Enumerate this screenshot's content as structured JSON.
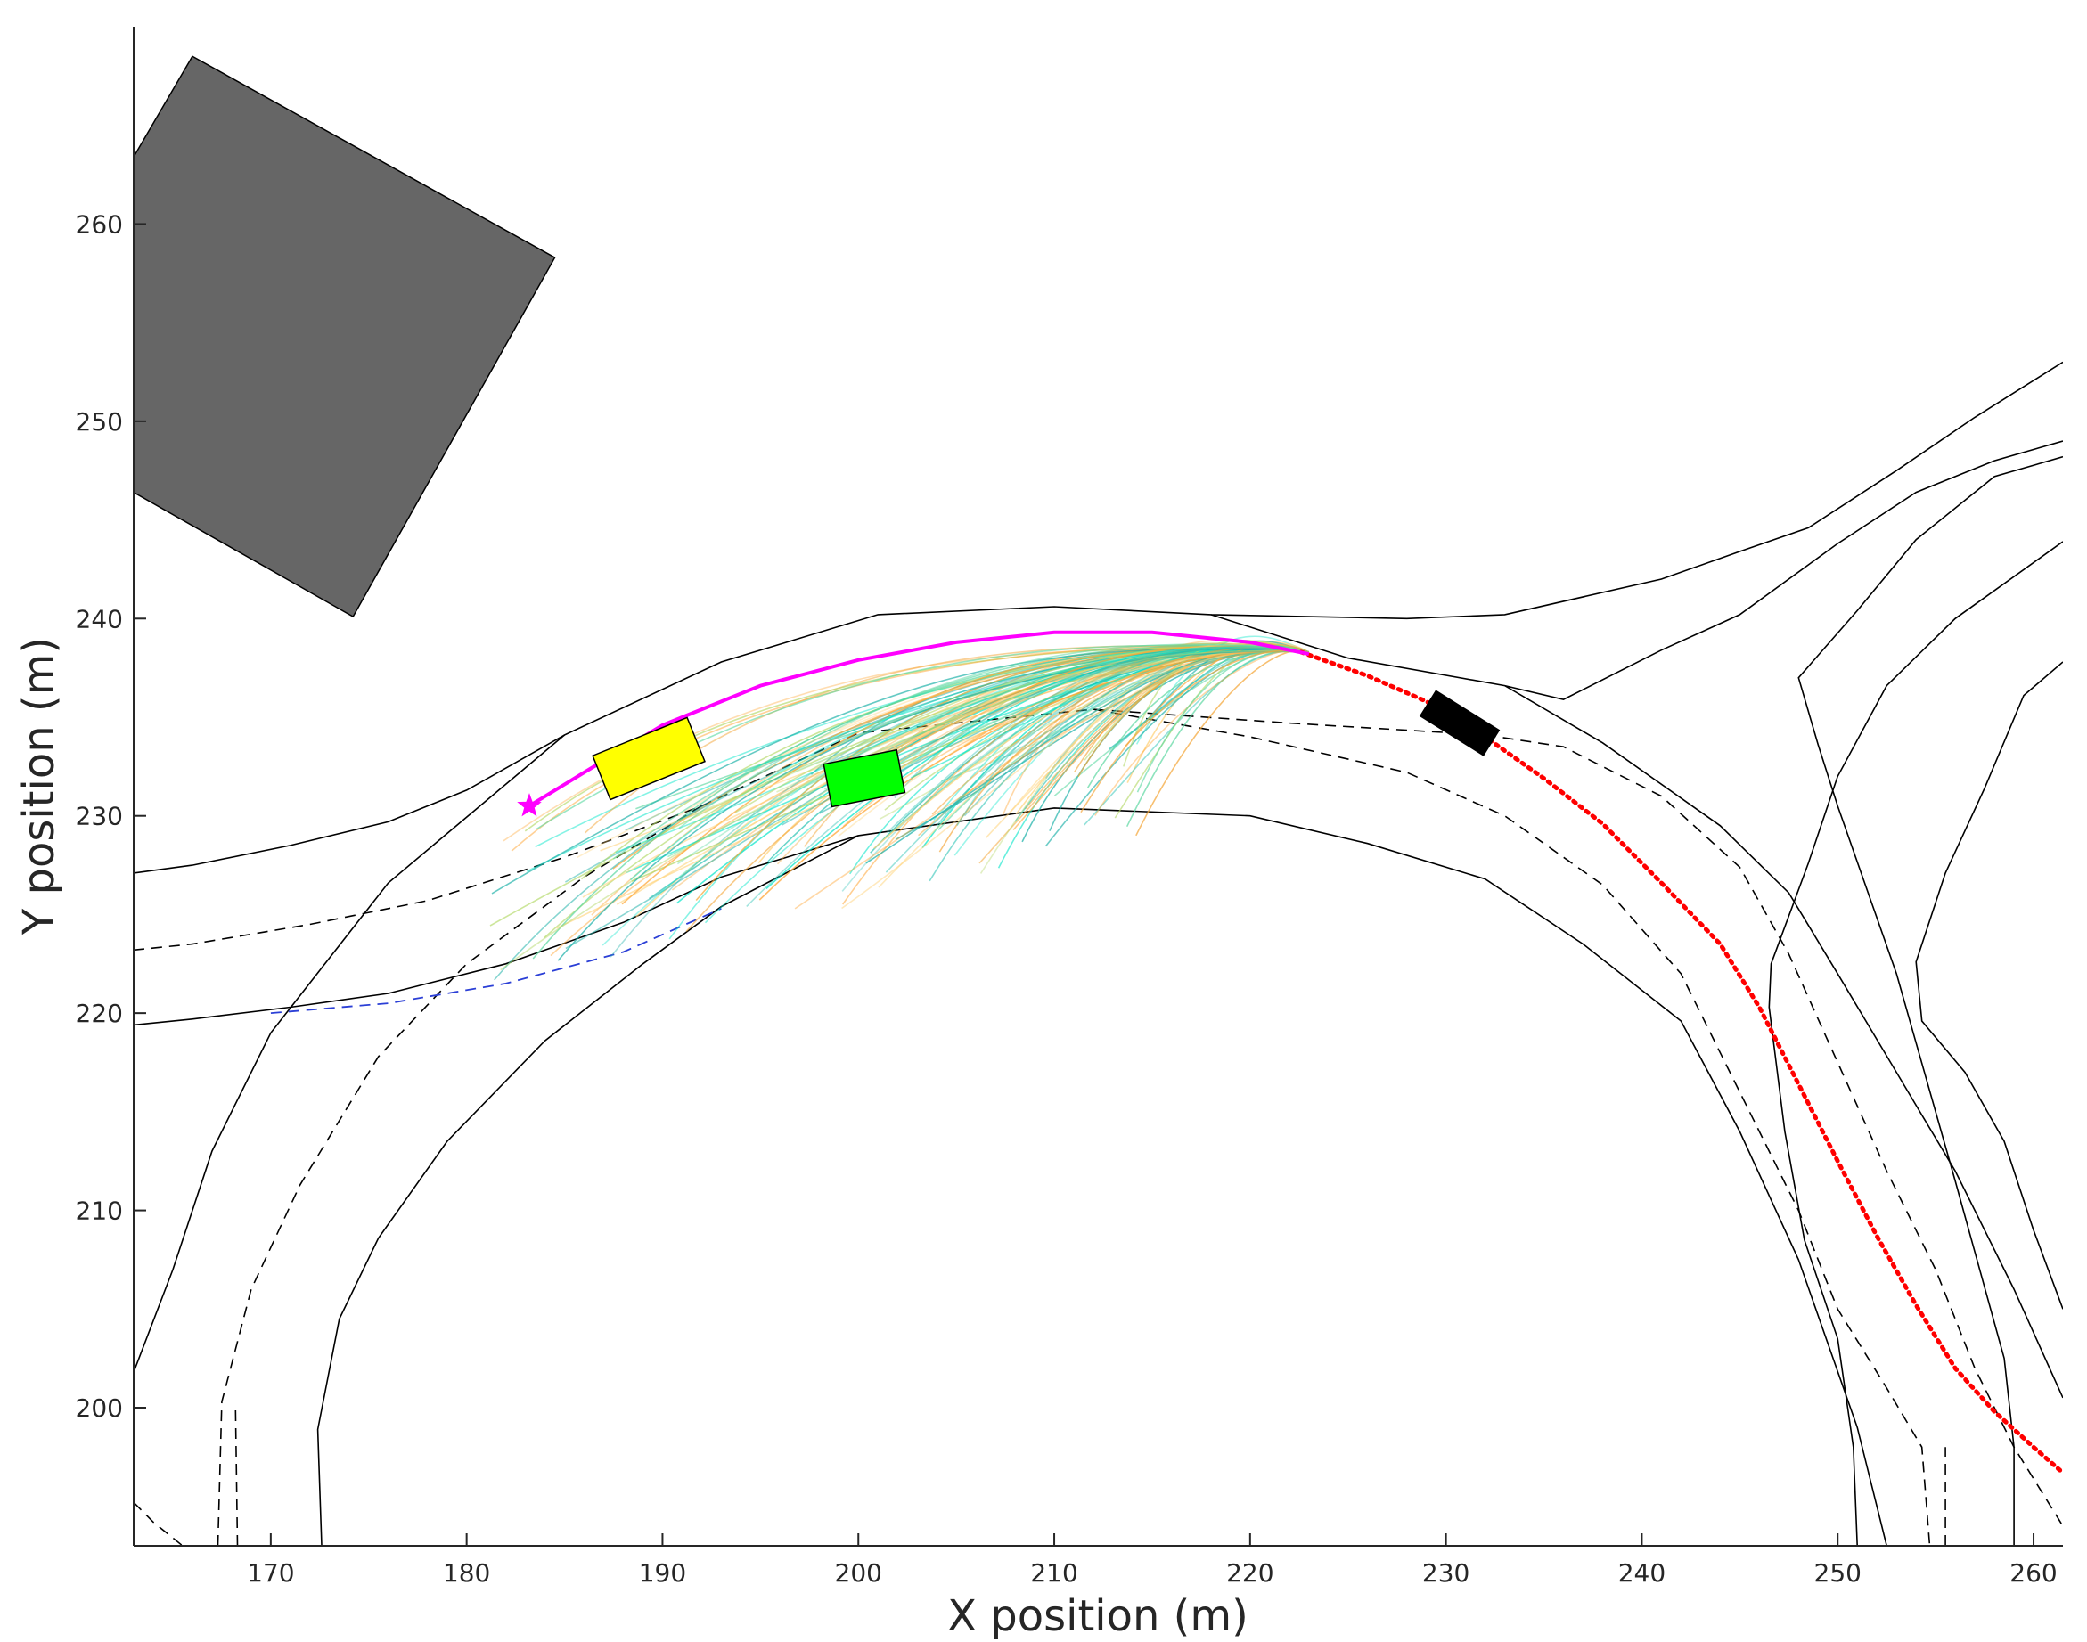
{
  "chart_data": {
    "type": "line",
    "title": "",
    "xlabel": "X position (m)",
    "ylabel": "Y position (m)",
    "xlim": [
      163,
      261.5
    ],
    "ylim": [
      193,
      270
    ],
    "xticks": [
      170,
      180,
      190,
      200,
      210,
      220,
      230,
      240,
      250,
      260
    ],
    "yticks": [
      200,
      210,
      220,
      230,
      240,
      250,
      260
    ],
    "grid": false,
    "legend": "none",
    "colors": {
      "road_edge": "#000000",
      "lane_center": "#000000",
      "ego_lane": "#2b3fd6",
      "planned_path": "#ff00ff",
      "reference": "#ff0000",
      "building": "#666666",
      "ego_vehicle": "#ffff00",
      "vehicle_green": "#00ff00",
      "vehicle_black": "#000000",
      "candidate_colors": [
        "#00e5c8",
        "#2ec4b6",
        "#20b2aa",
        "#f4a73b",
        "#ffa533",
        "#b5d96a",
        "#ffd37a",
        "#5ad7a0"
      ]
    },
    "building": [
      [
        163,
        263.4
      ],
      [
        166,
        268.5
      ],
      [
        184.5,
        258.3
      ],
      [
        174.2,
        240.1
      ],
      [
        163,
        246.4
      ]
    ],
    "road_edges": [
      [
        [
          163,
          227.1
        ],
        [
          166,
          227.5
        ],
        [
          171,
          228.5
        ],
        [
          176,
          229.7
        ],
        [
          180,
          231.3
        ],
        [
          185,
          234.1
        ],
        [
          193,
          237.8
        ],
        [
          201,
          240.2
        ],
        [
          210,
          240.6
        ],
        [
          218,
          240.2
        ],
        [
          228,
          240.0
        ],
        [
          233,
          240.2
        ],
        [
          241,
          242.0
        ],
        [
          245,
          243.4
        ],
        [
          248.5,
          244.6
        ],
        [
          253,
          247.5
        ],
        [
          257,
          250.2
        ],
        [
          261.5,
          253.0
        ]
      ],
      [
        [
          163,
          219.4
        ],
        [
          166,
          219.7
        ],
        [
          171,
          220.3
        ],
        [
          176,
          221.0
        ],
        [
          182,
          222.5
        ],
        [
          188,
          224.6
        ],
        [
          193,
          226.9
        ],
        [
          200,
          229.0
        ],
        [
          210,
          230.4
        ],
        [
          220,
          230.0
        ],
        [
          226,
          228.6
        ],
        [
          232,
          226.8
        ],
        [
          237,
          223.5
        ],
        [
          242,
          219.6
        ],
        [
          245,
          214.0
        ],
        [
          248,
          207.5
        ],
        [
          251,
          199.0
        ],
        [
          252.5,
          193.0
        ]
      ],
      [
        [
          163,
          201.8
        ],
        [
          165,
          207.0
        ],
        [
          167,
          213.0
        ],
        [
          170,
          219.0
        ],
        [
          176,
          226.6
        ],
        [
          185,
          234.1
        ]
      ],
      [
        [
          172.6,
          193.0
        ],
        [
          172.4,
          198.9
        ],
        [
          173.5,
          204.5
        ],
        [
          175.5,
          208.6
        ],
        [
          179,
          213.5
        ],
        [
          184,
          218.6
        ],
        [
          189,
          222.5
        ],
        [
          193,
          225.4
        ],
        [
          200,
          229.0
        ]
      ],
      [
        [
          218,
          240.2
        ],
        [
          225,
          238.0
        ],
        [
          233,
          236.6
        ],
        [
          238,
          233.7
        ],
        [
          244,
          229.5
        ],
        [
          247.5,
          226.1
        ],
        [
          250,
          222.0
        ],
        [
          253,
          217.0
        ],
        [
          256,
          212.0
        ],
        [
          259,
          206.0
        ],
        [
          261.5,
          200.5
        ]
      ],
      [
        [
          233,
          236.6
        ],
        [
          236,
          235.9
        ],
        [
          241,
          238.4
        ],
        [
          245,
          240.2
        ],
        [
          250,
          243.8
        ],
        [
          254,
          246.4
        ],
        [
          258,
          248.0
        ],
        [
          261.5,
          249.0
        ]
      ],
      [
        [
          259,
          193.0
        ],
        [
          259,
          198.0
        ],
        [
          258.5,
          202.5
        ],
        [
          256,
          211.5
        ],
        [
          253,
          222.0
        ],
        [
          250,
          230.5
        ],
        [
          249,
          233.6
        ],
        [
          248,
          237.0
        ],
        [
          251,
          240.4
        ],
        [
          254,
          244.0
        ],
        [
          258,
          247.2
        ],
        [
          261.5,
          248.2
        ]
      ],
      [
        [
          251,
          193.0
        ],
        [
          250.8,
          198.0
        ],
        [
          250,
          203.5
        ],
        [
          248.3,
          208.5
        ],
        [
          247.3,
          214.0
        ],
        [
          246.5,
          220.3
        ],
        [
          246.6,
          222.5
        ],
        [
          248.5,
          227.6
        ],
        [
          250,
          232.0
        ],
        [
          252.5,
          236.6
        ],
        [
          256,
          240.0
        ],
        [
          261.5,
          243.9
        ]
      ],
      [
        [
          261.5,
          237.8
        ],
        [
          259.5,
          236.1
        ],
        [
          257.5,
          231.4
        ],
        [
          255.5,
          227.1
        ],
        [
          254,
          222.6
        ],
        [
          254.3,
          219.6
        ],
        [
          256.5,
          217.0
        ],
        [
          258.5,
          213.5
        ],
        [
          260,
          209.0
        ],
        [
          261.5,
          205.0
        ]
      ]
    ],
    "lane_centers": [
      [
        [
          163,
          223.2
        ],
        [
          166,
          223.5
        ],
        [
          172,
          224.5
        ],
        [
          178,
          225.7
        ],
        [
          185,
          227.9
        ],
        [
          192,
          230.5
        ],
        [
          200,
          234.2
        ],
        [
          212,
          235.4
        ],
        [
          222,
          234.7
        ],
        [
          232,
          234.1
        ],
        [
          236,
          233.5
        ],
        [
          241,
          231.0
        ],
        [
          245,
          227.4
        ],
        [
          247.5,
          223.0
        ],
        [
          250,
          217.5
        ],
        [
          252.5,
          212.0
        ],
        [
          255,
          207.0
        ],
        [
          257,
          202.0
        ],
        [
          259,
          198.0
        ],
        [
          261.5,
          194.0
        ]
      ],
      [
        [
          163,
          195.2
        ],
        [
          164,
          194.2
        ],
        [
          165.5,
          193.0
        ]
      ],
      [
        [
          167.3,
          193.0
        ],
        [
          167.5,
          200.3
        ],
        [
          169,
          206.0
        ],
        [
          171.5,
          211.3
        ],
        [
          175.5,
          217.8
        ],
        [
          180,
          222.5
        ],
        [
          186,
          226.9
        ],
        [
          192,
          230.5
        ]
      ],
      [
        [
          168.3,
          193.0
        ],
        [
          168.2,
          200.0
        ]
      ],
      [
        [
          212,
          235.4
        ],
        [
          220,
          234.0
        ],
        [
          228,
          232.2
        ],
        [
          233,
          230.0
        ],
        [
          238,
          226.5
        ],
        [
          242,
          222.0
        ],
        [
          245,
          216.0
        ],
        [
          248,
          210.0
        ],
        [
          250,
          205.0
        ],
        [
          252.5,
          201.0
        ],
        [
          254.3,
          198.0
        ],
        [
          254.7,
          193.0
        ]
      ],
      [
        [
          255.5,
          193.0
        ],
        [
          255.5,
          198.0
        ]
      ]
    ],
    "ego_lane": [
      [
        170,
        220.0
      ],
      [
        176,
        220.5
      ],
      [
        182,
        221.5
      ],
      [
        188,
        223.1
      ],
      [
        193,
        225.3
      ]
    ],
    "reference_path": [
      [
        222.6,
        238.3
      ],
      [
        226,
        237.1
      ],
      [
        229,
        235.8
      ],
      [
        232,
        234.0
      ],
      [
        235,
        231.9
      ],
      [
        238,
        229.6
      ],
      [
        241,
        226.6
      ],
      [
        244,
        223.5
      ],
      [
        246,
        220.3
      ],
      [
        248,
        216.4
      ],
      [
        250,
        212.5
      ],
      [
        252,
        208.7
      ],
      [
        254,
        205.2
      ],
      [
        256,
        202.0
      ],
      [
        258,
        199.8
      ],
      [
        260,
        198.0
      ],
      [
        261.5,
        196.7
      ]
    ],
    "planned_path": [
      [
        183.2,
        230.5
      ],
      [
        186,
        232.2
      ],
      [
        190,
        234.6
      ],
      [
        195,
        236.6
      ],
      [
        200,
        237.9
      ],
      [
        205,
        238.8
      ],
      [
        210,
        239.3
      ],
      [
        215,
        239.3
      ],
      [
        220,
        238.8
      ],
      [
        223,
        238.2
      ]
    ],
    "start_point": [
      183.2,
      230.5
    ],
    "vehicles": [
      {
        "center": [
          189.3,
          232.9
        ],
        "length": 5.2,
        "width": 2.4,
        "angle": 22,
        "color": "#ffff00"
      },
      {
        "center": [
          200.3,
          231.9
        ],
        "length": 3.8,
        "width": 2.2,
        "angle": 11,
        "color": "#00ff00"
      },
      {
        "center": [
          230.7,
          234.7
        ],
        "length": 3.8,
        "width": 1.5,
        "angle": -32,
        "color": "#000000"
      }
    ],
    "candidate_trajectories": {
      "count": 140,
      "end_point": [
        223,
        238.3
      ],
      "start_x_range": [
        181,
        215
      ],
      "start_y_range": [
        221,
        236
      ]
    }
  }
}
